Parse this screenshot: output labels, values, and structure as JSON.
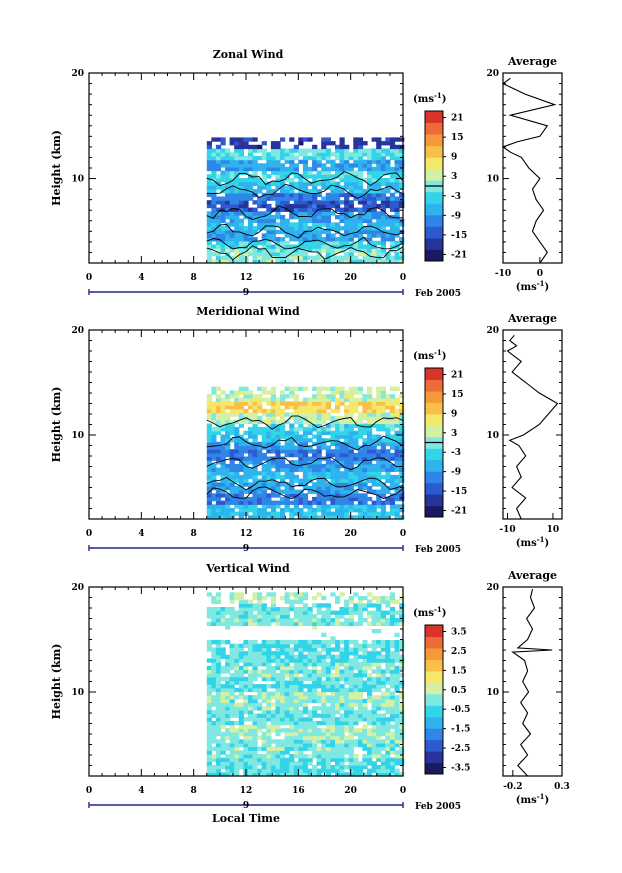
{
  "x_tick_labels": [
    "0",
    "4",
    "8",
    "12",
    "16",
    "20",
    "0"
  ],
  "day_label": "9",
  "date_label": "Feb 2005",
  "xlabel": "Local Time",
  "ylabel": "Height (km)",
  "unit_label": "(ms",
  "unit_sup": "-1",
  "unit_close": ")",
  "colors": {
    "ramp": [
      "#1a1a5e",
      "#27359a",
      "#2d5ad0",
      "#2f86e6",
      "#2fb3ee",
      "#33d3e8",
      "#7fe8e0",
      "#d3f0a4",
      "#f4e86a",
      "#f8c048",
      "#f59a3a",
      "#ee6a38",
      "#d8342c"
    ],
    "contour": "#000000"
  },
  "chart_data": [
    {
      "type": "heatmap",
      "title": "Zonal Wind",
      "xlim": [
        0,
        24
      ],
      "ylim": [
        2,
        20
      ],
      "x_ticks": [
        0,
        4,
        8,
        12,
        16,
        20,
        24
      ],
      "y_ticks": [
        10,
        20
      ],
      "data_time_range": [
        9,
        24
      ],
      "data_height_range": [
        2,
        13.8
      ],
      "colorbar": {
        "ticks": [
          "21",
          "15",
          "9",
          "3",
          "-3",
          "-9",
          "-15",
          "-21"
        ],
        "range": [
          -24,
          24
        ],
        "zero_line": true
      },
      "layers": [
        {
          "height": 13.0,
          "value": -18
        },
        {
          "height": 12.2,
          "value": -3
        },
        {
          "height": 11.0,
          "value": -9
        },
        {
          "height": 9.8,
          "value": -3
        },
        {
          "height": 9.0,
          "value": -6
        },
        {
          "height": 8.2,
          "value": -12
        },
        {
          "height": 7.2,
          "value": -15
        },
        {
          "height": 6.2,
          "value": -9
        },
        {
          "height": 5.2,
          "value": -6
        },
        {
          "height": 4.4,
          "value": -9
        },
        {
          "height": 3.6,
          "value": -3
        },
        {
          "height": 2.8,
          "value": 0
        }
      ],
      "profile": {
        "title": "Average",
        "xlim": [
          -10,
          6
        ],
        "x_ticks": [
          "-10",
          "0"
        ],
        "x_tick_values": [
          -10,
          0
        ],
        "xlabel": "(ms",
        "height": [
          2,
          3,
          4,
          5,
          6,
          7,
          8,
          9,
          10,
          11,
          12,
          12.5,
          13,
          13.5,
          14,
          15,
          16,
          17,
          18,
          19,
          19.5
        ],
        "value": [
          0,
          2,
          0,
          -2,
          -1,
          1,
          -1,
          -2,
          0,
          -3,
          -5,
          -8,
          -10,
          -6,
          0,
          2,
          -8,
          4,
          -4,
          -10,
          -8
        ]
      }
    },
    {
      "type": "heatmap",
      "title": "Meridional Wind",
      "xlim": [
        0,
        24
      ],
      "ylim": [
        2,
        20
      ],
      "x_ticks": [
        0,
        4,
        8,
        12,
        16,
        20,
        24
      ],
      "y_ticks": [
        10,
        20
      ],
      "data_time_range": [
        9,
        24
      ],
      "data_height_range": [
        2,
        14.5
      ],
      "colorbar": {
        "ticks": [
          "21",
          "15",
          "9",
          "3",
          "-3",
          "-9",
          "-15",
          "-21"
        ],
        "range": [
          -24,
          24
        ],
        "zero_line": true
      },
      "layers": [
        {
          "height": 13.8,
          "value": 3
        },
        {
          "height": 12.4,
          "value": 9
        },
        {
          "height": 11.4,
          "value": 3
        },
        {
          "height": 10.6,
          "value": -3
        },
        {
          "height": 9.6,
          "value": -6
        },
        {
          "height": 8.8,
          "value": -9
        },
        {
          "height": 7.8,
          "value": -12
        },
        {
          "height": 6.8,
          "value": -9
        },
        {
          "height": 5.8,
          "value": -6
        },
        {
          "height": 4.8,
          "value": -9
        },
        {
          "height": 3.8,
          "value": -12
        },
        {
          "height": 2.8,
          "value": -6
        }
      ],
      "profile": {
        "title": "Average",
        "xlim": [
          -12,
          14
        ],
        "x_ticks": [
          "-10",
          "10"
        ],
        "x_tick_values": [
          -10,
          10
        ],
        "xlabel": "(ms",
        "height": [
          2,
          3,
          4,
          5,
          6,
          7,
          8,
          9,
          9.5,
          10,
          11,
          12,
          13,
          14,
          15,
          16,
          17,
          18,
          18.5,
          19,
          19.5
        ],
        "value": [
          -4,
          -6,
          -2,
          -8,
          -4,
          -6,
          -2,
          -5,
          -9,
          -3,
          4,
          8,
          12,
          4,
          -2,
          -8,
          -4,
          -10,
          -6,
          -9,
          -7
        ]
      }
    },
    {
      "type": "heatmap",
      "title": "Vertical Wind",
      "xlim": [
        0,
        24
      ],
      "ylim": [
        2,
        20
      ],
      "x_ticks": [
        0,
        4,
        8,
        12,
        16,
        20,
        24
      ],
      "y_ticks": [
        10,
        20
      ],
      "data_time_range": [
        9,
        24
      ],
      "data_height_range": [
        2,
        19.2
      ],
      "colorbar": {
        "ticks": [
          "3.5",
          "2.5",
          "1.5",
          "0.5",
          "-0.5",
          "-1.5",
          "-2.5",
          "-3.5"
        ],
        "range": [
          -4,
          4
        ],
        "zero_line": false
      },
      "layers": [
        {
          "height": 18.8,
          "value": 0.2
        },
        {
          "height": 17.6,
          "value": -0.2
        },
        {
          "height": 16.5,
          "value": 0.0
        },
        {
          "height": 13.5,
          "value": -0.3
        },
        {
          "height": 12.0,
          "value": 0.0
        },
        {
          "height": 10.5,
          "value": -0.3
        },
        {
          "height": 9.0,
          "value": 0.1
        },
        {
          "height": 7.5,
          "value": -0.2
        },
        {
          "height": 6.0,
          "value": 0.2
        },
        {
          "height": 4.5,
          "value": 0.0
        },
        {
          "height": 3.0,
          "value": -0.4
        }
      ],
      "profile": {
        "title": "Average",
        "xlim": [
          -0.3,
          0.3
        ],
        "x_ticks": [
          "-0.2",
          "0.3"
        ],
        "x_tick_values": [
          -0.2,
          0.3
        ],
        "xlabel": "(ms",
        "height": [
          2,
          3,
          4,
          5,
          6,
          7,
          8,
          9,
          10,
          11,
          12,
          13,
          13.8,
          14,
          14.2,
          15,
          16,
          17,
          18,
          19,
          19.8
        ],
        "value": [
          -0.05,
          -0.15,
          -0.05,
          -0.12,
          -0.02,
          -0.1,
          -0.05,
          -0.12,
          -0.04,
          -0.1,
          -0.05,
          -0.08,
          -0.2,
          0.2,
          -0.15,
          -0.05,
          0.0,
          -0.06,
          0.02,
          -0.02,
          0.0
        ]
      }
    }
  ]
}
